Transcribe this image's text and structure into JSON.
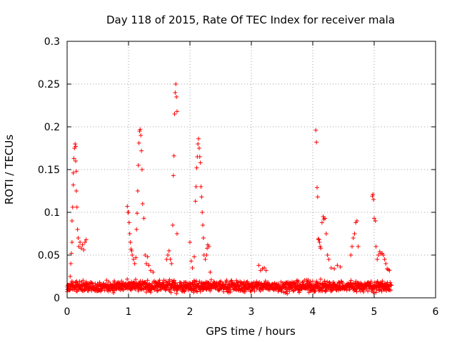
{
  "chart_data": {
    "type": "scatter",
    "title": "Day 118 of 2015, Rate Of TEC Index for receiver mala",
    "xlabel": "GPS time / hours",
    "ylabel": "ROTI / TECUs",
    "xlim": [
      0,
      6
    ],
    "ylim": [
      0,
      0.3
    ],
    "xticks": [
      0,
      1,
      2,
      3,
      4,
      5,
      6
    ],
    "yticks": [
      0,
      0.05,
      0.1,
      0.15,
      0.2,
      0.25,
      0.3
    ],
    "ytick_labels": [
      "0",
      "0.05",
      "0.1",
      "0.15",
      "0.2",
      "0.25",
      "0.3"
    ],
    "grid": true,
    "marker": "+",
    "color": "#ff0000",
    "baseline": {
      "x_range": [
        0.0,
        5.28
      ],
      "typical_range": [
        0.005,
        0.022
      ],
      "description": "dense band of points throughout the observation period"
    },
    "series": [
      {
        "name": "ROTI",
        "points": [
          [
            0.05,
            0.025
          ],
          [
            0.06,
            0.04
          ],
          [
            0.07,
            0.052
          ],
          [
            0.08,
            0.065
          ],
          [
            0.08,
            0.09
          ],
          [
            0.09,
            0.106
          ],
          [
            0.1,
            0.132
          ],
          [
            0.1,
            0.146
          ],
          [
            0.11,
            0.163
          ],
          [
            0.12,
            0.175
          ],
          [
            0.13,
            0.18
          ],
          [
            0.14,
            0.177
          ],
          [
            0.14,
            0.16
          ],
          [
            0.15,
            0.148
          ],
          [
            0.15,
            0.125
          ],
          [
            0.16,
            0.106
          ],
          [
            0.17,
            0.08
          ],
          [
            0.18,
            0.07
          ],
          [
            0.19,
            0.06
          ],
          [
            0.21,
            0.065
          ],
          [
            0.23,
            0.058
          ],
          [
            0.25,
            0.062
          ],
          [
            0.27,
            0.056
          ],
          [
            0.29,
            0.065
          ],
          [
            0.31,
            0.068
          ],
          [
            0.98,
            0.107
          ],
          [
            0.99,
            0.1
          ],
          [
            1.0,
            0.1
          ],
          [
            1.01,
            0.088
          ],
          [
            1.02,
            0.075
          ],
          [
            1.03,
            0.065
          ],
          [
            1.04,
            0.057
          ],
          [
            1.05,
            0.055
          ],
          [
            1.06,
            0.05
          ],
          [
            1.08,
            0.045
          ],
          [
            1.1,
            0.04
          ],
          [
            1.12,
            0.047
          ],
          [
            1.13,
            0.08
          ],
          [
            1.14,
            0.099
          ],
          [
            1.15,
            0.125
          ],
          [
            1.16,
            0.155
          ],
          [
            1.17,
            0.181
          ],
          [
            1.18,
            0.195
          ],
          [
            1.19,
            0.197
          ],
          [
            1.2,
            0.19
          ],
          [
            1.21,
            0.172
          ],
          [
            1.22,
            0.15
          ],
          [
            1.23,
            0.11
          ],
          [
            1.25,
            0.093
          ],
          [
            1.27,
            0.05
          ],
          [
            1.29,
            0.04
          ],
          [
            1.31,
            0.048
          ],
          [
            1.33,
            0.038
          ],
          [
            1.36,
            0.032
          ],
          [
            1.4,
            0.03
          ],
          [
            1.62,
            0.045
          ],
          [
            1.64,
            0.05
          ],
          [
            1.66,
            0.055
          ],
          [
            1.68,
            0.045
          ],
          [
            1.7,
            0.04
          ],
          [
            1.72,
            0.085
          ],
          [
            1.73,
            0.143
          ],
          [
            1.74,
            0.166
          ],
          [
            1.75,
            0.215
          ],
          [
            1.76,
            0.24
          ],
          [
            1.77,
            0.25
          ],
          [
            1.78,
            0.235
          ],
          [
            1.79,
            0.218
          ],
          [
            1.79,
            0.075
          ],
          [
            2.0,
            0.065
          ],
          [
            2.02,
            0.043
          ],
          [
            2.04,
            0.035
          ],
          [
            2.07,
            0.048
          ],
          [
            2.09,
            0.113
          ],
          [
            2.1,
            0.13
          ],
          [
            2.11,
            0.152
          ],
          [
            2.12,
            0.165
          ],
          [
            2.13,
            0.18
          ],
          [
            2.14,
            0.186
          ],
          [
            2.15,
            0.175
          ],
          [
            2.16,
            0.165
          ],
          [
            2.17,
            0.158
          ],
          [
            2.18,
            0.13
          ],
          [
            2.19,
            0.118
          ],
          [
            2.2,
            0.1
          ],
          [
            2.21,
            0.085
          ],
          [
            2.22,
            0.07
          ],
          [
            2.23,
            0.05
          ],
          [
            2.25,
            0.045
          ],
          [
            2.27,
            0.05
          ],
          [
            2.28,
            0.058
          ],
          [
            2.29,
            0.062
          ],
          [
            2.31,
            0.06
          ],
          [
            2.33,
            0.03
          ],
          [
            3.12,
            0.038
          ],
          [
            3.15,
            0.032
          ],
          [
            3.18,
            0.034
          ],
          [
            3.21,
            0.035
          ],
          [
            3.24,
            0.032
          ],
          [
            4.05,
            0.196
          ],
          [
            4.06,
            0.182
          ],
          [
            4.07,
            0.129
          ],
          [
            4.08,
            0.118
          ],
          [
            4.09,
            0.069
          ],
          [
            4.1,
            0.068
          ],
          [
            4.11,
            0.065
          ],
          [
            4.12,
            0.06
          ],
          [
            4.13,
            0.058
          ],
          [
            4.15,
            0.088
          ],
          [
            4.17,
            0.095
          ],
          [
            4.18,
            0.092
          ],
          [
            4.2,
            0.093
          ],
          [
            4.22,
            0.075
          ],
          [
            4.24,
            0.05
          ],
          [
            4.26,
            0.045
          ],
          [
            4.3,
            0.035
          ],
          [
            4.35,
            0.034
          ],
          [
            4.4,
            0.038
          ],
          [
            4.45,
            0.036
          ],
          [
            4.62,
            0.05
          ],
          [
            4.64,
            0.06
          ],
          [
            4.66,
            0.07
          ],
          [
            4.68,
            0.075
          ],
          [
            4.7,
            0.088
          ],
          [
            4.72,
            0.09
          ],
          [
            4.74,
            0.06
          ],
          [
            4.97,
            0.119
          ],
          [
            4.98,
            0.121
          ],
          [
            4.99,
            0.115
          ],
          [
            5.0,
            0.093
          ],
          [
            5.02,
            0.09
          ],
          [
            5.03,
            0.06
          ],
          [
            5.05,
            0.045
          ],
          [
            5.07,
            0.05
          ],
          [
            5.09,
            0.054
          ],
          [
            5.11,
            0.052
          ],
          [
            5.13,
            0.052
          ],
          [
            5.15,
            0.05
          ],
          [
            5.17,
            0.045
          ],
          [
            5.19,
            0.04
          ],
          [
            5.21,
            0.034
          ],
          [
            5.23,
            0.033
          ],
          [
            5.25,
            0.032
          ]
        ]
      }
    ]
  }
}
